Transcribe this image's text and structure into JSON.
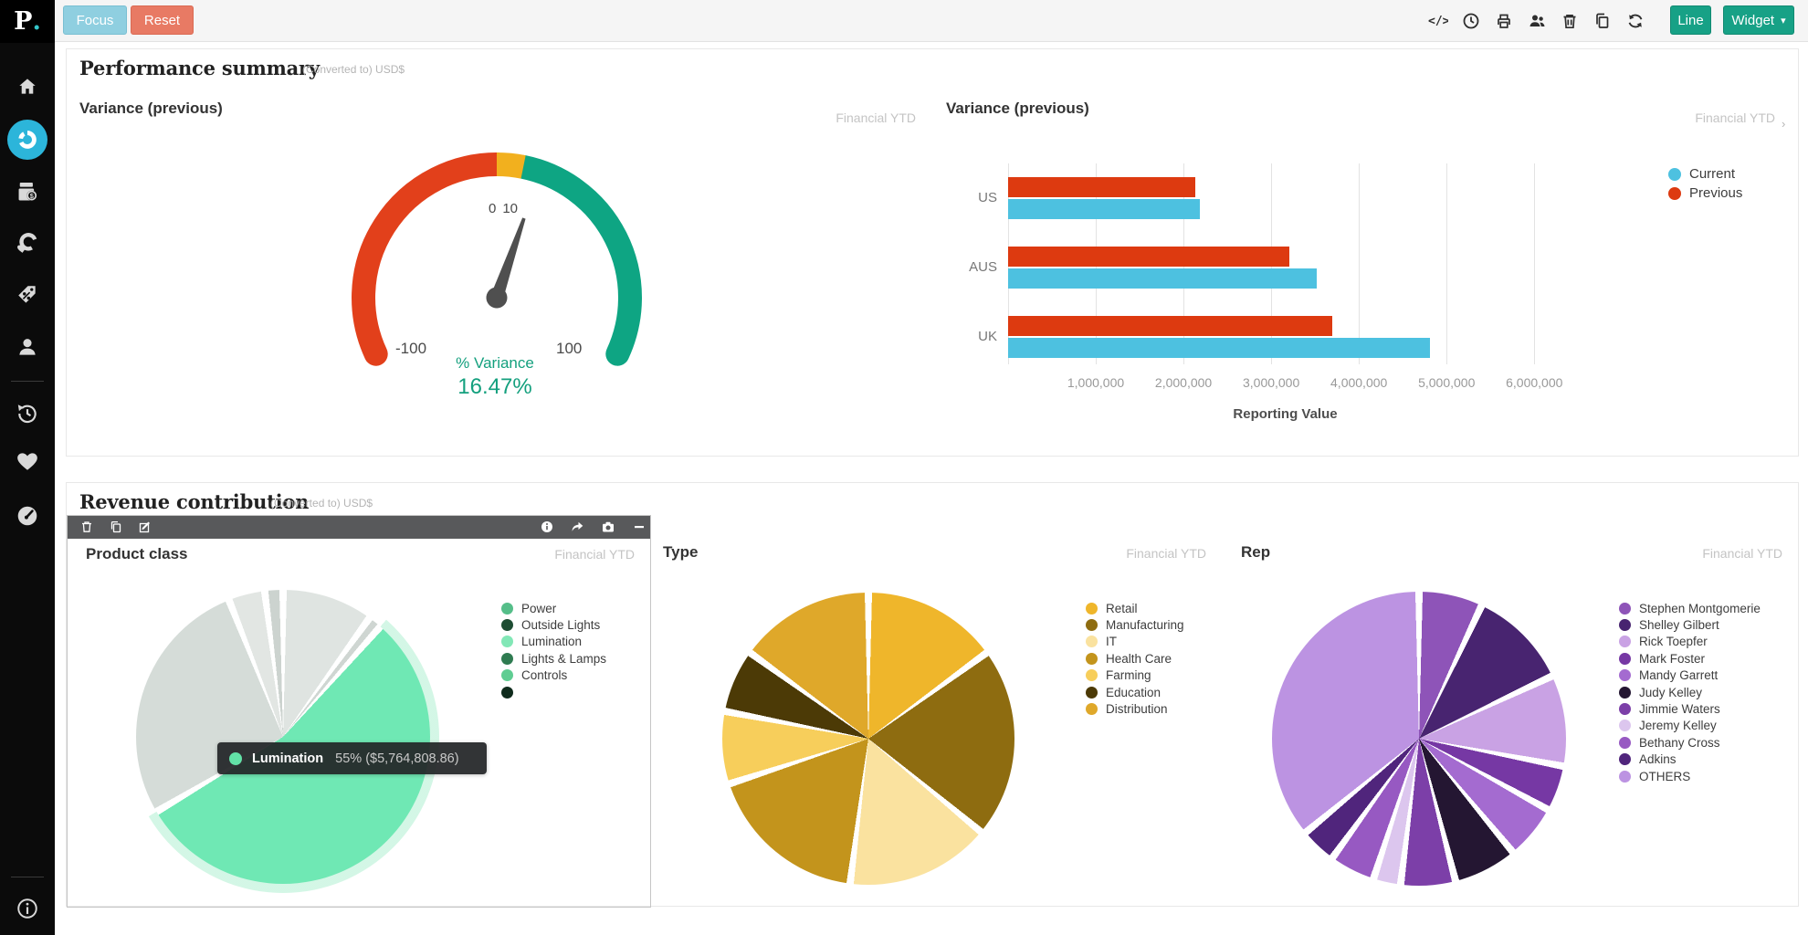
{
  "app": {
    "logo_text": "P",
    "logo_dot": "."
  },
  "topbar": {
    "focus_label": "Focus",
    "reset_label": "Reset",
    "icons": [
      "code-icon",
      "clock-icon",
      "print-icon",
      "users-icon",
      "trash-icon",
      "copy-icon",
      "refresh-icon"
    ],
    "line_label": "Line",
    "widget_label": "Widget",
    "widget_caret": "▾"
  },
  "sidebar": {
    "accent": "#2cb5da",
    "items": [
      "home",
      "analytics-donut (active)",
      "sales-register",
      "customers-donut-heart",
      "pricing-tag-percent",
      "people",
      "history",
      "favorites-heart",
      "dashboards-gauge",
      "info"
    ]
  },
  "performance": {
    "title": "Performance summary",
    "subtitle": "(Converted to) USD$",
    "gauge_panel": {
      "title": "Variance (previous)",
      "period": "Financial YTD"
    },
    "bar_panel": {
      "title": "Variance (previous)",
      "period": "Financial YTD",
      "period_chevron": "›"
    }
  },
  "revenue": {
    "title": "Revenue contribution",
    "subtitle": "(Converted to) USD$",
    "widget_toolbar_icons": [
      "trash-icon",
      "copy-icon",
      "edit-icon",
      "info-icon",
      "share-icon",
      "camera-icon",
      "minimize-icon"
    ],
    "product_panel": {
      "title": "Product class",
      "period": "Financial YTD"
    },
    "type_panel": {
      "title": "Type",
      "period": "Financial YTD"
    },
    "rep_panel": {
      "title": "Rep",
      "period": "Financial YTD"
    },
    "tooltip": {
      "name": "Lumination",
      "value_text": "55% ($5,764,808.86)",
      "dot_color": "#62e2a7"
    }
  },
  "chart_data": {
    "gauge": {
      "type": "gauge",
      "title": "Variance (previous)",
      "min": -100,
      "max": 100,
      "value": 16.47,
      "value_display": "16.47%",
      "label": "% Variance",
      "tick_labels": {
        "zero": "0",
        "ten": "10",
        "min": "-100",
        "max": "100"
      },
      "bands": [
        {
          "from": -100,
          "to": 0,
          "color": "#e2401b"
        },
        {
          "from": 0,
          "to": 10,
          "color": "#f2b01e"
        },
        {
          "from": 10,
          "to": 100,
          "color": "#0ea583"
        }
      ],
      "needle_color": "#4f4f4f",
      "value_color": "#14a07e"
    },
    "bar_chart": {
      "type": "bar",
      "orientation": "horizontal",
      "title": "Variance (previous)",
      "categories": [
        "US",
        "AUS",
        "UK"
      ],
      "series": [
        {
          "name": "Current",
          "color": "#4dc1e0",
          "values": [
            2190000,
            3520000,
            4810000
          ]
        },
        {
          "name": "Previous",
          "color": "#dd3a10",
          "values": [
            2130000,
            3210000,
            3700000
          ]
        }
      ],
      "xlabel": "Reporting Value",
      "xmax": 6320000,
      "ticks": [
        {
          "label": "1,000,000",
          "value": 1000000
        },
        {
          "label": "2,000,000",
          "value": 2000000
        },
        {
          "label": "3,000,000",
          "value": 3000000
        },
        {
          "label": "4,000,000",
          "value": 4000000
        },
        {
          "label": "5,000,000",
          "value": 5000000
        },
        {
          "label": "6,000,000",
          "value": 6000000
        }
      ]
    },
    "pie_product_class": {
      "type": "pie",
      "title": "Product class",
      "state": "hover-highlight",
      "highlight": "Lumination",
      "slices": [
        {
          "label": "Power",
          "pct": 10,
          "color": "#dfe4e1"
        },
        {
          "label": "Outside Lights",
          "pct": 1.5,
          "color": "#cfd6d2"
        },
        {
          "label": "Lumination",
          "pct": 55,
          "color": "#6fe8b4"
        },
        {
          "label": "Lights & Lamps",
          "pct": 27.5,
          "color": "#d5dcd8"
        },
        {
          "label": "Controls",
          "pct": 4,
          "color": "#e2e6e3"
        },
        {
          "label": "",
          "pct": 2,
          "color": "#ccd3cf"
        }
      ],
      "halo": [
        {
          "pct": 11.5,
          "color": "rgba(0,0,0,0)"
        },
        {
          "pct": 55,
          "color": "rgba(130,231,182,0.35)"
        },
        {
          "pct": 33.5,
          "color": "rgba(0,0,0,0)"
        }
      ],
      "legend": [
        {
          "label": "Power",
          "color": "#55be89"
        },
        {
          "label": "Outside Lights",
          "color": "#1e4d33"
        },
        {
          "label": "Lumination",
          "color": "#82e7b6"
        },
        {
          "label": "Lights & Lamps",
          "color": "#2f7b51"
        },
        {
          "label": "Controls",
          "color": "#5fcd92"
        },
        {
          "label": "",
          "color": "#0f2b1c"
        }
      ]
    },
    "pie_type": {
      "type": "pie",
      "title": "Type",
      "slices": [
        {
          "label": "Retail",
          "pct": 15,
          "color": "#efb62b"
        },
        {
          "label": "Manufacturing",
          "pct": 21,
          "color": "#8e6c10"
        },
        {
          "label": "IT",
          "pct": 16,
          "color": "#fae29f"
        },
        {
          "label": "Health Care",
          "pct": 18,
          "color": "#c3941c"
        },
        {
          "label": "Farming",
          "pct": 8,
          "color": "#f7ce5b"
        },
        {
          "label": "Education",
          "pct": 7,
          "color": "#4c3a06"
        },
        {
          "label": "Distribution",
          "pct": 15,
          "color": "#dfa82a"
        }
      ]
    },
    "pie_rep": {
      "type": "pie",
      "title": "Rep",
      "slices": [
        {
          "label": "Stephen Montgomerie",
          "pct": 7,
          "color": "#8e54b8"
        },
        {
          "label": "Shelley Gilbert",
          "pct": 11,
          "color": "#482470"
        },
        {
          "label": "Rick Toepfer",
          "pct": 10,
          "color": "#c9a2e4"
        },
        {
          "label": "Mark Foster",
          "pct": 5,
          "color": "#7638a4"
        },
        {
          "label": "Mandy Garrett",
          "pct": 6,
          "color": "#a46bd0"
        },
        {
          "label": "Judy Kelley",
          "pct": 7,
          "color": "#241632"
        },
        {
          "label": "Jimmie Waters",
          "pct": 6,
          "color": "#7c3fa8"
        },
        {
          "label": "Jeremy Kelley",
          "pct": 3,
          "color": "#dcc6ee"
        },
        {
          "label": "Bethany Cross",
          "pct": 5,
          "color": "#9759c2"
        },
        {
          "label": "Adkins",
          "pct": 4,
          "color": "#50257c"
        },
        {
          "label": "OTHERS",
          "pct": 36,
          "color": "#bc93e2"
        }
      ]
    }
  }
}
